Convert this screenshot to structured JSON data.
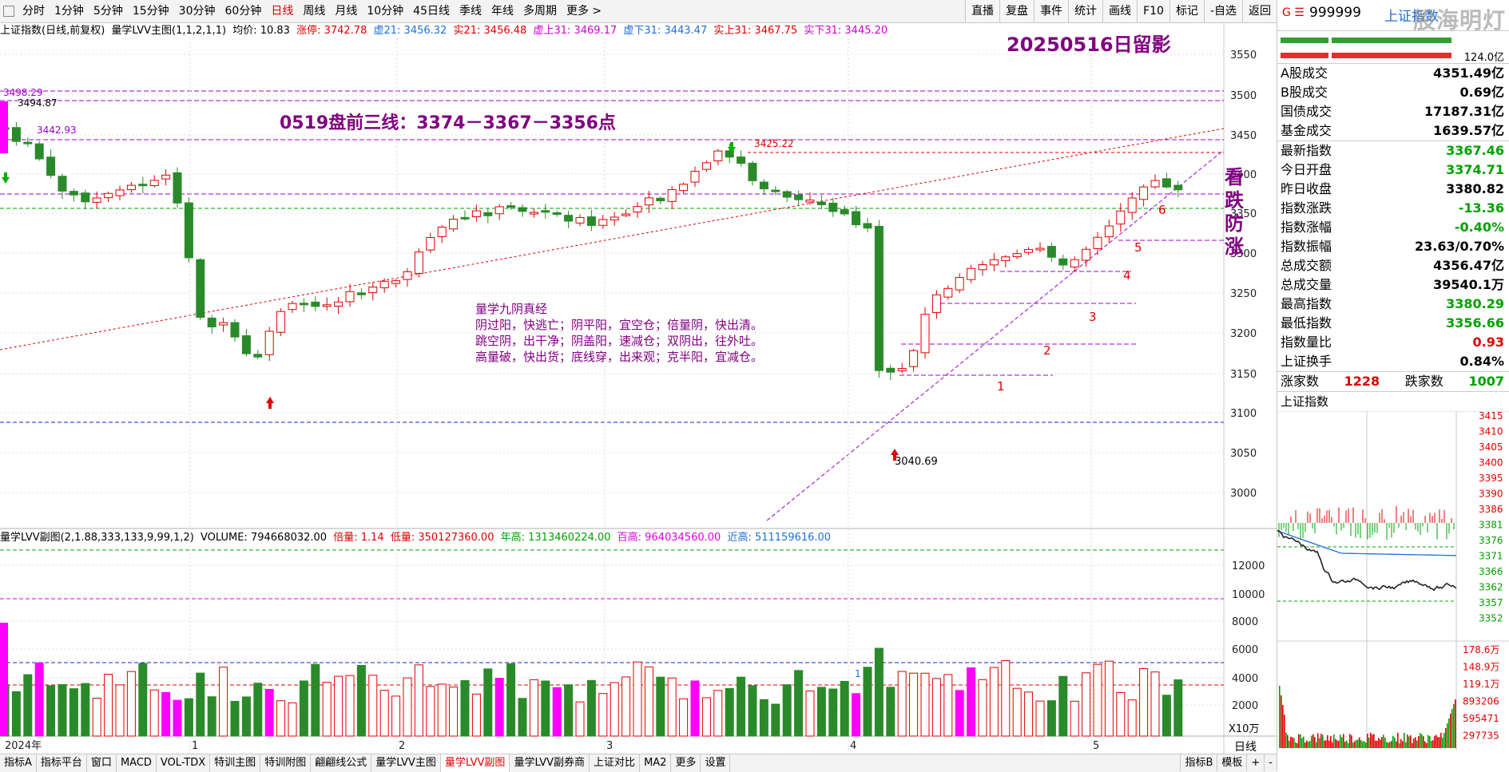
{
  "toolbar": {
    "periods": [
      "分时",
      "1分钟",
      "5分钟",
      "15分钟",
      "30分钟",
      "60分钟",
      "日线",
      "周线",
      "月线",
      "10分钟",
      "45日线",
      "季线",
      "年线",
      "多周期",
      "更多 >"
    ],
    "active_period": "日线",
    "right_tools": [
      "直播",
      "复盘",
      "事件",
      "统计",
      "画线",
      "F10",
      "标记",
      "-自选",
      "返回"
    ]
  },
  "main_legend": {
    "title": "上证指数(日线,前复权)",
    "indicator": "量学LVV主图(1,1,2,1,1)",
    "avg": "均价: 10.83",
    "zhangting": "涨停: 3742.78",
    "xu21": "虚21: 3456.32",
    "shi21": "实21: 3456.48",
    "xushang31": "虚上31: 3469.17",
    "xuxia31": "虚下31: 3443.47",
    "shishang31": "实上31: 3467.75",
    "shixia31": "实下31: 3445.20"
  },
  "annotations": {
    "date_tag": "20250516日留影",
    "pre_market": "0519盘前三线：3374－3367－3356点",
    "side_text": "看跌防涨",
    "verse_title": "量学九阴真经",
    "verse_1": "阴过阳，快逃亡；阴平阳，宜空仓；倍量阴，快出清。",
    "verse_2": "跳空阴，出干净；阴盖阳，速减仓；双阴出，往外吐。",
    "verse_3": "高量破，快出货；底线穿，出来观；克半阳，宜减仓。",
    "high_3498": "3498.29",
    "high_3494": "3494.87",
    "high_3442": "3442.93",
    "high_3425": "3425.22",
    "low_3040": "3040.69",
    "step_labels": [
      "1",
      "2",
      "3",
      "4",
      "5",
      "6"
    ]
  },
  "price_axis": [
    "3550",
    "3500",
    "3450",
    "3400",
    "3350",
    "3300",
    "3250",
    "3200",
    "3150",
    "3100",
    "3050",
    "3000"
  ],
  "date_axis": [
    "2024年",
    "1",
    "2",
    "3",
    "4",
    "5"
  ],
  "sub_legend": {
    "title": "量学LVV副图(2,1.88,333,133,9,99,1,2)",
    "volume": "VOLUME: 794668032.00",
    "beiliang": "倍量: 1.14",
    "diliang": "低量: 350127360.00",
    "niangao": "年高: 1313460224.00",
    "baigao": "百高: 964034560.00",
    "jingao": "近高: 511159616.00"
  },
  "volume_axis": [
    "12000",
    "10000",
    "8000",
    "6000",
    "4000",
    "2000"
  ],
  "volume_unit": "X10万",
  "right_mini_tab": "日线",
  "bottom_tabs": [
    "指标A",
    "指标平台",
    "窗口",
    "MACD",
    "VOL-TDX",
    "特训主图",
    "特训附图",
    "翩翩线公式",
    "量学LVV主图",
    "量学LVV副图",
    "量学LVV副券商",
    "上证对比",
    "MA2",
    "更多",
    "设置"
  ],
  "bottom_active": "量学LVV副图",
  "bottom_right": [
    "指标B",
    "模板",
    "+",
    "-"
  ],
  "side": {
    "g": "G ☰",
    "code": "999999",
    "name": "上证指数",
    "watermark": "股海明灯",
    "bar_value": "124.0亿",
    "turnover": [
      {
        "label": "A股成交",
        "value": "4351.49亿"
      },
      {
        "label": "B股成交",
        "value": "0.69亿"
      },
      {
        "label": "国债成交",
        "value": "17187.31亿"
      },
      {
        "label": "基金成交",
        "value": "1639.57亿"
      }
    ],
    "stats": [
      {
        "label": "最新指数",
        "value": "3367.46",
        "color": "green"
      },
      {
        "label": "今日开盘",
        "value": "3374.71",
        "color": "green"
      },
      {
        "label": "昨日收盘",
        "value": "3380.82",
        "color": "black"
      },
      {
        "label": "指数涨跌",
        "value": "-13.36",
        "color": "green"
      },
      {
        "label": "指数涨幅",
        "value": "-0.40%",
        "color": "green"
      },
      {
        "label": "指数振幅",
        "value": "23.63/0.70%",
        "color": "black"
      },
      {
        "label": "总成交额",
        "value": "4356.47亿",
        "color": "black"
      },
      {
        "label": "总成交量",
        "value": "39540.1万",
        "color": "black"
      },
      {
        "label": "最高指数",
        "value": "3380.29",
        "color": "green"
      },
      {
        "label": "最低指数",
        "value": "3356.66",
        "color": "green"
      },
      {
        "label": "指数量比",
        "value": "0.93",
        "color": "red"
      },
      {
        "label": "上证换手",
        "value": "0.84%",
        "color": "black"
      }
    ],
    "up_label": "涨家数",
    "up_value": "1228",
    "down_label": "跌家数",
    "down_value": "1007",
    "mini_title": "上证指数",
    "mini_price_axis": [
      "3415",
      "3410",
      "3405",
      "3400",
      "3395",
      "3390",
      "3386",
      "3381",
      "3376",
      "3371",
      "3366",
      "3362",
      "3357",
      "3352"
    ],
    "mini_vol_axis": [
      "178.6万",
      "148.9万",
      "119.1万",
      "893206",
      "595471",
      "297735"
    ]
  }
}
